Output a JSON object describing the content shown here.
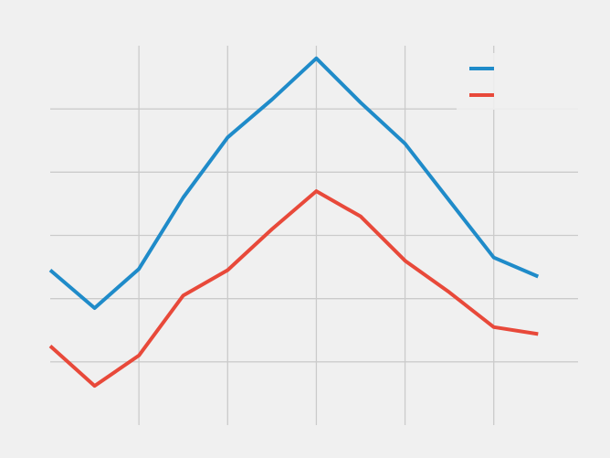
{
  "chart_data": {
    "type": "line",
    "title": "",
    "xlabel": "",
    "ylabel": "",
    "x": [
      0,
      1,
      2,
      3,
      4,
      5,
      6,
      7,
      8,
      9,
      10,
      11
    ],
    "xlim": [
      0,
      11.9
    ],
    "ylim": [
      -0.5,
      5.5
    ],
    "grid": true,
    "x_gridlines": [
      2,
      4,
      6,
      8,
      10
    ],
    "y_gridlines": [
      0.5,
      1.5,
      2.5,
      3.5,
      4.5
    ],
    "legend_position": "top-right",
    "series": [
      {
        "values": [
          1.95,
          1.35,
          1.97,
          3.1,
          4.05,
          4.65,
          5.3,
          4.6,
          3.95,
          3.05,
          2.15,
          1.85
        ],
        "color": "#1f8bc9"
      },
      {
        "values": [
          0.75,
          0.12,
          0.6,
          1.55,
          1.95,
          2.6,
          3.2,
          2.8,
          2.1,
          1.6,
          1.05,
          0.94
        ],
        "color": "#e8493a"
      }
    ],
    "background": "#f0f0f0",
    "grid_color": "#cbcbcb"
  }
}
